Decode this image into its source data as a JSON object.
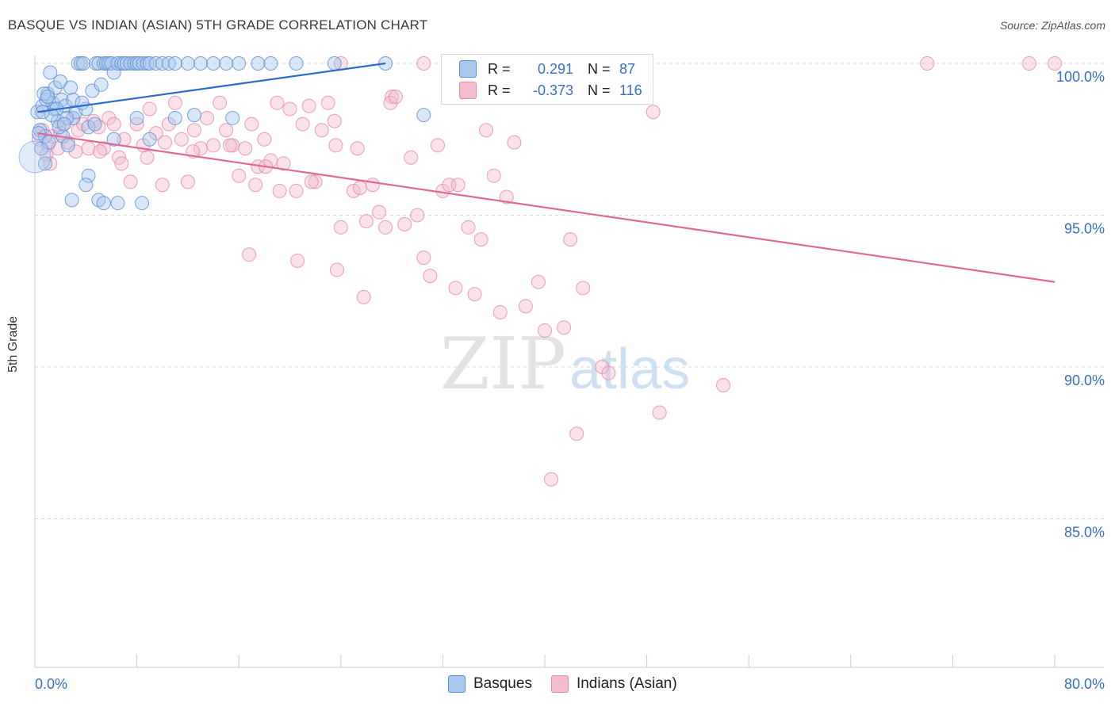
{
  "title": "BASQUE VS INDIAN (ASIAN) 5TH GRADE CORRELATION CHART",
  "source": "Source: ZipAtlas.com",
  "watermark": {
    "zip": "ZIP",
    "atlas": "atlas"
  },
  "legend": {
    "rows": [
      {
        "r_label": "R =",
        "r_value": "0.291",
        "n_label": "N =",
        "n_value": "87"
      },
      {
        "r_label": "R =",
        "r_value": "-0.373",
        "n_label": "N =",
        "n_value": "116"
      }
    ]
  },
  "bottom_legend": [
    "Basques",
    "Indians (Asian)"
  ],
  "colors": {
    "basque_fill": "#a9c8ee",
    "basque_stroke": "#5b8fd6",
    "basque_line": "#2e6ccc",
    "indian_fill": "#f5bcd0",
    "indian_stroke": "#e48aab",
    "indian_line": "#e2689a",
    "value_text": "#3a6fc4",
    "grid": "#d8d8d8"
  },
  "chart_data": {
    "type": "scatter",
    "title": "BASQUE VS INDIAN (ASIAN) 5TH GRADE CORRELATION CHART",
    "xlabel": "",
    "ylabel": "5th Grade",
    "xlim": [
      0,
      80
    ],
    "ylim": [
      80.5,
      100.8
    ],
    "x_tick_labels": [
      "0.0%",
      "80.0%"
    ],
    "y_tick_labels": [
      "100.0%",
      "95.0%",
      "90.0%",
      "85.0%"
    ],
    "y_ticks": [
      100,
      95,
      90,
      85
    ],
    "series": [
      {
        "name": "Basques",
        "R": 0.291,
        "N": 87,
        "trend": [
          [
            0.2,
            98.4
          ],
          [
            27.5,
            100.0
          ]
        ],
        "points": [
          [
            0.2,
            98.4
          ],
          [
            0.4,
            97.8
          ],
          [
            0.5,
            97.2
          ],
          [
            0.6,
            98.6
          ],
          [
            0.8,
            96.7
          ],
          [
            1.0,
            99.0
          ],
          [
            1.2,
            99.7
          ],
          [
            1.4,
            98.7
          ],
          [
            1.5,
            98.5
          ],
          [
            1.6,
            99.2
          ],
          [
            1.8,
            98.1
          ],
          [
            2.0,
            99.4
          ],
          [
            2.1,
            98.8
          ],
          [
            2.2,
            97.6
          ],
          [
            2.4,
            98.6
          ],
          [
            2.6,
            97.3
          ],
          [
            2.8,
            99.2
          ],
          [
            3.0,
            98.2
          ],
          [
            3.2,
            98.4
          ],
          [
            3.4,
            100.0
          ],
          [
            3.6,
            100.0
          ],
          [
            3.8,
            100.0
          ],
          [
            4.0,
            98.5
          ],
          [
            4.2,
            97.9
          ],
          [
            4.5,
            99.1
          ],
          [
            4.8,
            100.0
          ],
          [
            5.0,
            100.0
          ],
          [
            5.2,
            99.3
          ],
          [
            5.4,
            100.0
          ],
          [
            5.6,
            100.0
          ],
          [
            5.8,
            100.0
          ],
          [
            6.0,
            100.0
          ],
          [
            6.2,
            99.7
          ],
          [
            6.5,
            100.0
          ],
          [
            6.8,
            100.0
          ],
          [
            7.0,
            100.0
          ],
          [
            7.2,
            100.0
          ],
          [
            7.5,
            100.0
          ],
          [
            7.8,
            100.0
          ],
          [
            8.0,
            100.0
          ],
          [
            8.2,
            100.0
          ],
          [
            8.5,
            100.0
          ],
          [
            8.8,
            100.0
          ],
          [
            9.0,
            100.0
          ],
          [
            9.5,
            100.0
          ],
          [
            10.0,
            100.0
          ],
          [
            10.5,
            100.0
          ],
          [
            11.0,
            100.0
          ],
          [
            12.0,
            100.0
          ],
          [
            13.0,
            100.0
          ],
          [
            14.0,
            100.0
          ],
          [
            15.0,
            100.0
          ],
          [
            16.0,
            100.0
          ],
          [
            17.5,
            100.0
          ],
          [
            18.5,
            100.0
          ],
          [
            20.5,
            100.0
          ],
          [
            23.5,
            100.0
          ],
          [
            27.5,
            100.0
          ],
          [
            30.5,
            98.3
          ],
          [
            4.2,
            96.3
          ],
          [
            4.0,
            96.0
          ],
          [
            5.0,
            95.5
          ],
          [
            5.4,
            95.4
          ],
          [
            6.5,
            95.4
          ],
          [
            8.4,
            95.4
          ],
          [
            2.9,
            95.5
          ],
          [
            6.2,
            97.5
          ],
          [
            8.0,
            98.2
          ],
          [
            11.0,
            98.2
          ],
          [
            12.5,
            98.3
          ],
          [
            15.5,
            98.2
          ],
          [
            2.5,
            98.2
          ],
          [
            1.7,
            98.5
          ],
          [
            0.9,
            98.8
          ],
          [
            0.7,
            99.0
          ],
          [
            3.0,
            98.8
          ],
          [
            1.3,
            98.3
          ],
          [
            0.8,
            97.6
          ],
          [
            0.3,
            97.7
          ],
          [
            1.1,
            97.4
          ],
          [
            9.0,
            97.5
          ],
          [
            1.9,
            97.9
          ],
          [
            2.3,
            98.0
          ],
          [
            3.7,
            98.7
          ],
          [
            0.6,
            98.4
          ],
          [
            1.0,
            98.9
          ],
          [
            4.7,
            98.0
          ]
        ]
      },
      {
        "name": "Indians (Asian)",
        "R": -0.373,
        "N": 116,
        "trend": [
          [
            0.2,
            97.7
          ],
          [
            80.0,
            92.8
          ]
        ],
        "points": [
          [
            0.3,
            97.5
          ],
          [
            0.6,
            97.8
          ],
          [
            1.0,
            97.3
          ],
          [
            1.4,
            97.6
          ],
          [
            1.8,
            97.2
          ],
          [
            2.2,
            98.0
          ],
          [
            2.6,
            97.4
          ],
          [
            3.0,
            98.2
          ],
          [
            3.4,
            97.8
          ],
          [
            3.8,
            98.0
          ],
          [
            4.2,
            97.2
          ],
          [
            4.6,
            98.1
          ],
          [
            5.0,
            97.9
          ],
          [
            5.4,
            97.2
          ],
          [
            5.8,
            98.2
          ],
          [
            6.2,
            98.0
          ],
          [
            6.6,
            96.9
          ],
          [
            7.0,
            97.5
          ],
          [
            7.5,
            96.1
          ],
          [
            8.0,
            98.0
          ],
          [
            8.5,
            97.3
          ],
          [
            9.0,
            98.5
          ],
          [
            9.5,
            97.7
          ],
          [
            10.0,
            96.0
          ],
          [
            10.5,
            98.0
          ],
          [
            11.0,
            98.7
          ],
          [
            11.5,
            97.5
          ],
          [
            12.0,
            96.1
          ],
          [
            12.5,
            97.8
          ],
          [
            13.0,
            97.2
          ],
          [
            13.5,
            98.2
          ],
          [
            14.0,
            97.3
          ],
          [
            14.5,
            98.7
          ],
          [
            15.0,
            97.8
          ],
          [
            15.5,
            97.3
          ],
          [
            16.0,
            96.3
          ],
          [
            16.5,
            97.2
          ],
          [
            17.0,
            98.0
          ],
          [
            17.5,
            96.6
          ],
          [
            18.0,
            97.5
          ],
          [
            18.5,
            96.8
          ],
          [
            19.0,
            98.7
          ],
          [
            19.5,
            96.7
          ],
          [
            20.0,
            98.5
          ],
          [
            20.5,
            95.8
          ],
          [
            21.0,
            98.0
          ],
          [
            21.5,
            98.6
          ],
          [
            22.0,
            96.1
          ],
          [
            22.5,
            97.8
          ],
          [
            23.0,
            98.7
          ],
          [
            23.5,
            98.1
          ],
          [
            24.0,
            94.6
          ],
          [
            25.0,
            95.8
          ],
          [
            25.5,
            95.9
          ],
          [
            26.0,
            94.8
          ],
          [
            26.5,
            96.0
          ],
          [
            27.0,
            95.1
          ],
          [
            27.5,
            94.6
          ],
          [
            28.0,
            98.9
          ],
          [
            29.0,
            94.7
          ],
          [
            29.5,
            96.9
          ],
          [
            30.0,
            95.0
          ],
          [
            30.5,
            93.6
          ],
          [
            31.0,
            93.0
          ],
          [
            32.0,
            95.8
          ],
          [
            32.5,
            96.0
          ],
          [
            33.0,
            92.6
          ],
          [
            34.0,
            94.6
          ],
          [
            34.5,
            92.4
          ],
          [
            35.0,
            94.2
          ],
          [
            36.0,
            96.3
          ],
          [
            36.5,
            91.8
          ],
          [
            37.0,
            95.6
          ],
          [
            38.5,
            92.0
          ],
          [
            39.5,
            92.8
          ],
          [
            40.0,
            91.2
          ],
          [
            40.5,
            86.3
          ],
          [
            41.5,
            91.3
          ],
          [
            42.0,
            94.2
          ],
          [
            42.5,
            87.8
          ],
          [
            43.0,
            92.6
          ],
          [
            44.5,
            90.0
          ],
          [
            45.0,
            89.8
          ],
          [
            48.5,
            98.4
          ],
          [
            49.0,
            88.5
          ],
          [
            54.0,
            89.4
          ],
          [
            70.0,
            100.0
          ],
          [
            78.0,
            100.0
          ],
          [
            80.0,
            100.0
          ],
          [
            30.5,
            100.0
          ],
          [
            24.0,
            100.0
          ],
          [
            1.2,
            96.7
          ],
          [
            3.2,
            97.1
          ],
          [
            5.1,
            97.1
          ],
          [
            6.8,
            96.7
          ],
          [
            8.8,
            96.9
          ],
          [
            10.2,
            97.4
          ],
          [
            12.4,
            97.1
          ],
          [
            15.3,
            97.3
          ],
          [
            17.3,
            96.0
          ],
          [
            19.2,
            95.8
          ],
          [
            21.7,
            96.1
          ],
          [
            23.6,
            97.3
          ],
          [
            25.3,
            97.2
          ],
          [
            27.9,
            98.7
          ],
          [
            31.6,
            97.3
          ],
          [
            33.2,
            96.0
          ],
          [
            35.4,
            97.8
          ],
          [
            37.6,
            97.4
          ],
          [
            18.1,
            96.6
          ],
          [
            16.8,
            93.7
          ],
          [
            20.6,
            93.5
          ],
          [
            23.7,
            93.2
          ],
          [
            25.8,
            92.3
          ],
          [
            28.3,
            98.9
          ],
          [
            0.9,
            97.0
          ],
          [
            2.0,
            97.7
          ]
        ]
      }
    ]
  }
}
